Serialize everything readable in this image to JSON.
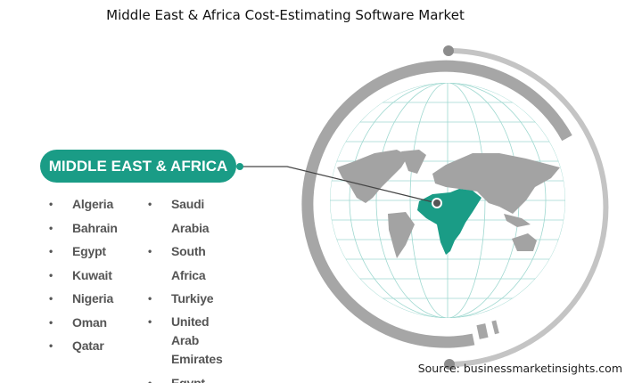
{
  "title": "Middle East & Africa Cost-Estimating Software Market",
  "region_label": "MIDDLE EAST & AFRICA",
  "countries_col1": [
    "Algeria",
    "Bahrain",
    "Egypt",
    "Kuwait",
    "Nigeria",
    "Oman",
    "Qatar"
  ],
  "countries_col2": [
    "Saudi Arabia",
    "South Africa",
    "Turkiye",
    "United Arab Emirates",
    "Egypt"
  ],
  "source": "Source: businessmarketinsights.com",
  "colors": {
    "accent": "#1a9c86",
    "ring": "#a6a6a6",
    "ring_light": "#c4c4c4",
    "land": "#a3a3a3",
    "grid": "#9fd8d0"
  }
}
